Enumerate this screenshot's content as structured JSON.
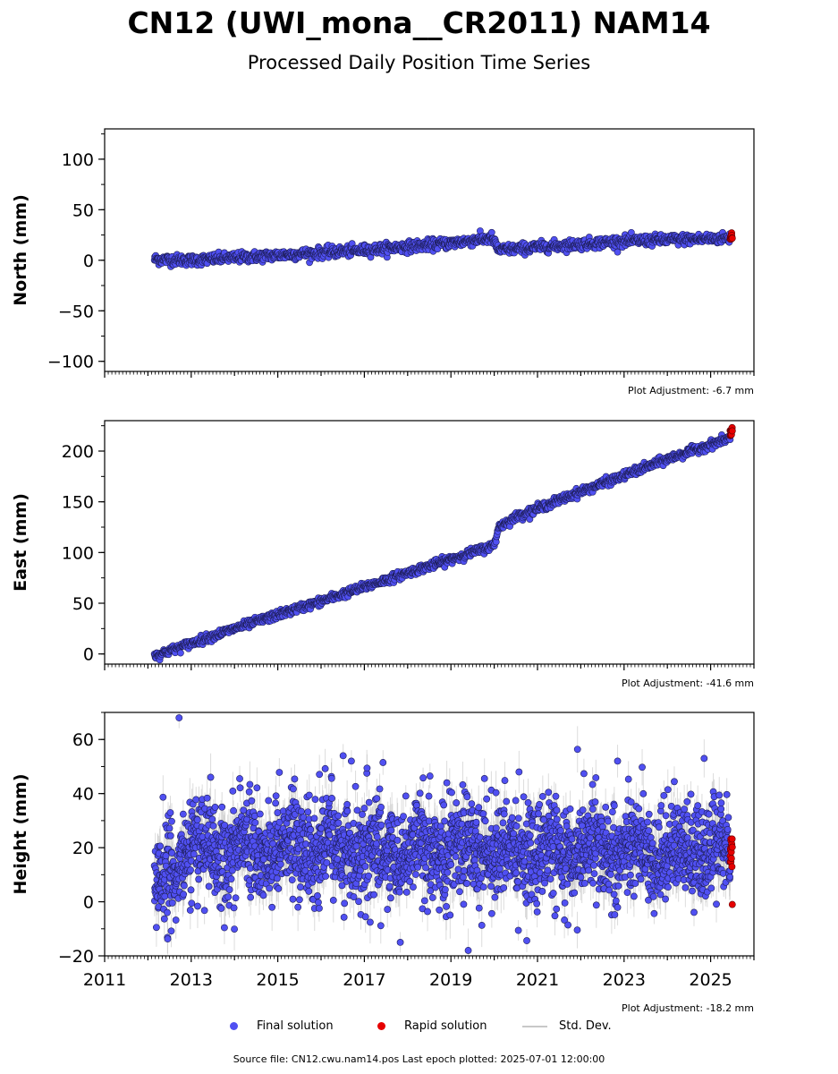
{
  "title": "CN12 (UWI_mona__CR2011) NAM14",
  "subtitle": "Processed Daily Position Time Series",
  "chart_data": [
    {
      "type": "scatter",
      "ylabel": "North (mm)",
      "xlim": [
        2011,
        2026
      ],
      "ylim": [
        -110,
        130
      ],
      "yticks": [
        -100,
        -50,
        0,
        50,
        100
      ],
      "ytick_labels": [
        "−100",
        "−50",
        "0",
        "50",
        "100"
      ],
      "adjustment_note": "Plot Adjustment: -6.7 mm",
      "final_trend": {
        "x": [
          2012.15,
          2013.0,
          2015.0,
          2017.0,
          2019.0,
          2019.95,
          2020.1,
          2021.0,
          2023.0,
          2025.45
        ],
        "y": [
          1,
          0,
          5,
          10,
          17,
          22,
          10,
          13,
          19,
          22
        ]
      },
      "noise": 2.6,
      "sigma": 2.0,
      "rapid": {
        "x0": 2025.45,
        "x1": 2025.5,
        "center": 23,
        "spread": 4.5
      },
      "std_dev": false
    },
    {
      "type": "scatter",
      "ylabel": "East (mm)",
      "xlim": [
        2011,
        2026
      ],
      "ylim": [
        -10,
        230
      ],
      "yticks": [
        0,
        50,
        100,
        150,
        200
      ],
      "ytick_labels": [
        "0",
        "50",
        "100",
        "150",
        "200"
      ],
      "adjustment_note": "Plot Adjustment: -41.6 mm",
      "final_trend": {
        "x": [
          2012.15,
          2014.0,
          2016.0,
          2018.0,
          2020.0,
          2020.1,
          2020.5,
          2022.0,
          2024.0,
          2025.45
        ],
        "y": [
          -2,
          25,
          52,
          80,
          107,
          125,
          135,
          160,
          192,
          213
        ]
      },
      "noise": 2.0,
      "sigma": 1.5,
      "rapid": {
        "x0": 2025.45,
        "x1": 2025.5,
        "center": 219,
        "spread": 4.5
      },
      "std_dev": false
    },
    {
      "type": "scatter",
      "ylabel": "Height (mm)",
      "xlim": [
        2011,
        2026
      ],
      "ylim": [
        -20,
        70
      ],
      "yticks": [
        -20,
        0,
        20,
        40,
        60
      ],
      "ytick_labels": [
        "−20",
        "0",
        "20",
        "40",
        "60"
      ],
      "xticks": [
        2011,
        2013,
        2015,
        2017,
        2019,
        2021,
        2023,
        2025
      ],
      "adjustment_note": "Plot Adjustment: -18.2 mm",
      "final_trend": {
        "x": [
          2012.15,
          2012.5,
          2012.9,
          2013.5,
          2025.45
        ],
        "y": [
          5,
          12,
          20,
          20,
          18
        ]
      },
      "noise": 8.0,
      "sigma": 6.0,
      "outliers": [
        {
          "x": 2012.72,
          "y": 68
        },
        {
          "x": 2019.4,
          "y": -18
        },
        {
          "x": 2024.85,
          "y": 53
        },
        {
          "x": 2022.85,
          "y": 52
        },
        {
          "x": 2016.7,
          "y": 52
        }
      ],
      "rapid": {
        "x0": 2025.45,
        "x1": 2025.5,
        "center": 17,
        "spread": 7,
        "low": -1
      },
      "std_dev": true
    }
  ],
  "legend": {
    "final": "Final solution",
    "rapid": "Rapid solution",
    "std": "Std. Dev."
  },
  "colors": {
    "final": "#5050f2",
    "final_edge": "#1e1e5a",
    "rapid": "#e60000",
    "std": "#c0c0c0"
  },
  "footer": "Source file: CN12.cwu.nam14.pos  Last epoch plotted: 2025-07-01 12:00:00"
}
